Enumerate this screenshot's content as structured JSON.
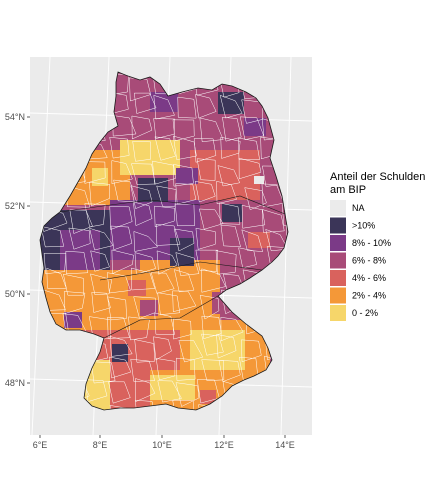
{
  "chart_data": {
    "type": "choropleth",
    "region": "Germany (Landkreise)",
    "title": "",
    "xlabel": "",
    "ylabel": "",
    "x_ticks": [
      "6°E",
      "8°E",
      "10°E",
      "12°E",
      "14°E"
    ],
    "y_ticks": [
      "54°N",
      "52°N",
      "50°N",
      "48°N"
    ],
    "xlim": [
      5.4,
      15.5
    ],
    "ylim": [
      46.9,
      55.5
    ],
    "grid": true,
    "background": "#ebebeb",
    "legend": {
      "placement": "right",
      "title_lines": [
        "Anteil der Schulden",
        "am BIP"
      ],
      "entries": [
        {
          "label": "NA",
          "color": "#ebebeb"
        },
        {
          "label": ">10%",
          "color": "#3b3558"
        },
        {
          "label": "8% - 10%",
          "color": "#7b3a87"
        },
        {
          "label": "6% - 8%",
          "color": "#a84b78"
        },
        {
          "label": "4% - 6%",
          "color": "#d9625d"
        },
        {
          "label": "2% - 4%",
          "color": "#f49838"
        },
        {
          "label": "0 - 2%",
          "color": "#f6d66a"
        }
      ]
    }
  }
}
